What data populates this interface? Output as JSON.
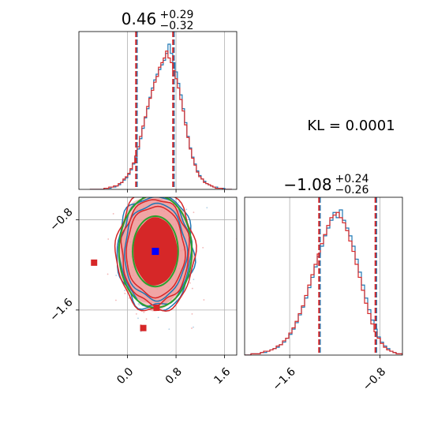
{
  "chart_data": {
    "type": "corner",
    "annotation": "KL = 0.0001",
    "colors": {
      "series_a": "#1f77b4",
      "series_b": "#d62728",
      "contour": "#2ca02c",
      "fill_inner": "#d62728",
      "fill_outer": "#ef9a9a",
      "marker": "#0000ff"
    },
    "params": [
      {
        "title_main": "0.46",
        "title_plus": "+0.29",
        "title_minus": "−0.32",
        "median": 0.46,
        "q_low": 0.14,
        "q_high": 0.75,
        "range": [
          -0.8,
          1.8
        ]
      },
      {
        "title_main": "−1.08",
        "title_plus": "+0.24",
        "title_minus": "−0.26",
        "median": -1.08,
        "q_low": -1.34,
        "q_high": -0.84,
        "range": [
          -2.0,
          -0.6
        ]
      }
    ],
    "x_ticks": [
      {
        "value": 0.0,
        "label": "0.0"
      },
      {
        "value": 0.8,
        "label": "0.8"
      },
      {
        "value": 1.6,
        "label": "1.6"
      }
    ],
    "y_ticks": [
      {
        "value": -0.8,
        "label": "−0.8"
      },
      {
        "value": -1.6,
        "label": "−1.6"
      }
    ],
    "x2_ticks": [
      {
        "value": -1.6,
        "label": "−1.6"
      },
      {
        "value": -0.8,
        "label": "−0.8"
      }
    ],
    "hist1": {
      "series_a": [
        0,
        0,
        0,
        0,
        0,
        0,
        1,
        1,
        1,
        2,
        2,
        3,
        4,
        6,
        8,
        10,
        13,
        17,
        22,
        28,
        35,
        44,
        53,
        62,
        70,
        80,
        88,
        95,
        100,
        104,
        108,
        112,
        118,
        126,
        118,
        110,
        102,
        92,
        82,
        70,
        58,
        46,
        36,
        28,
        22,
        16,
        12,
        9,
        7,
        5,
        4,
        3,
        2,
        2,
        1,
        1,
        1,
        0,
        0,
        0
      ],
      "series_b": [
        0,
        0,
        0,
        0,
        0,
        0,
        1,
        1,
        2,
        2,
        3,
        3,
        5,
        6,
        9,
        11,
        14,
        18,
        23,
        29,
        37,
        46,
        55,
        63,
        72,
        79,
        86,
        93,
        98,
        106,
        110,
        114,
        120,
        114,
        110,
        103,
        96,
        88,
        78,
        68,
        56,
        45,
        35,
        27,
        21,
        15,
        11,
        9,
        6,
        5,
        4,
        3,
        2,
        1,
        1,
        1,
        0,
        0,
        0,
        0
      ]
    },
    "hist2": {
      "series_a": [
        0,
        0,
        1,
        1,
        1,
        2,
        2,
        3,
        4,
        5,
        6,
        8,
        10,
        13,
        16,
        20,
        25,
        31,
        37,
        44,
        52,
        60,
        68,
        76,
        84,
        92,
        98,
        104,
        110,
        106,
        112,
        104,
        98,
        92,
        84,
        74,
        64,
        54,
        44,
        35,
        27,
        20,
        14,
        10,
        7,
        5,
        3,
        2,
        1,
        1
      ],
      "series_b": [
        0,
        0,
        1,
        1,
        1,
        2,
        3,
        3,
        4,
        5,
        7,
        8,
        11,
        13,
        17,
        21,
        26,
        32,
        38,
        46,
        54,
        62,
        70,
        78,
        86,
        93,
        100,
        106,
        108,
        110,
        106,
        102,
        96,
        88,
        80,
        70,
        60,
        50,
        40,
        32,
        24,
        18,
        13,
        9,
        6,
        4,
        3,
        2,
        1,
        1
      ]
    },
    "scatter_2d": {
      "center": [
        0.46,
        -1.08
      ],
      "sigma": [
        0.3,
        0.25
      ],
      "marker": [
        0.46,
        -1.08
      ],
      "outliers": [
        [
          -0.55,
          -1.18
        ],
        [
          0.26,
          -1.76
        ],
        [
          0.48,
          -1.58
        ]
      ]
    }
  }
}
